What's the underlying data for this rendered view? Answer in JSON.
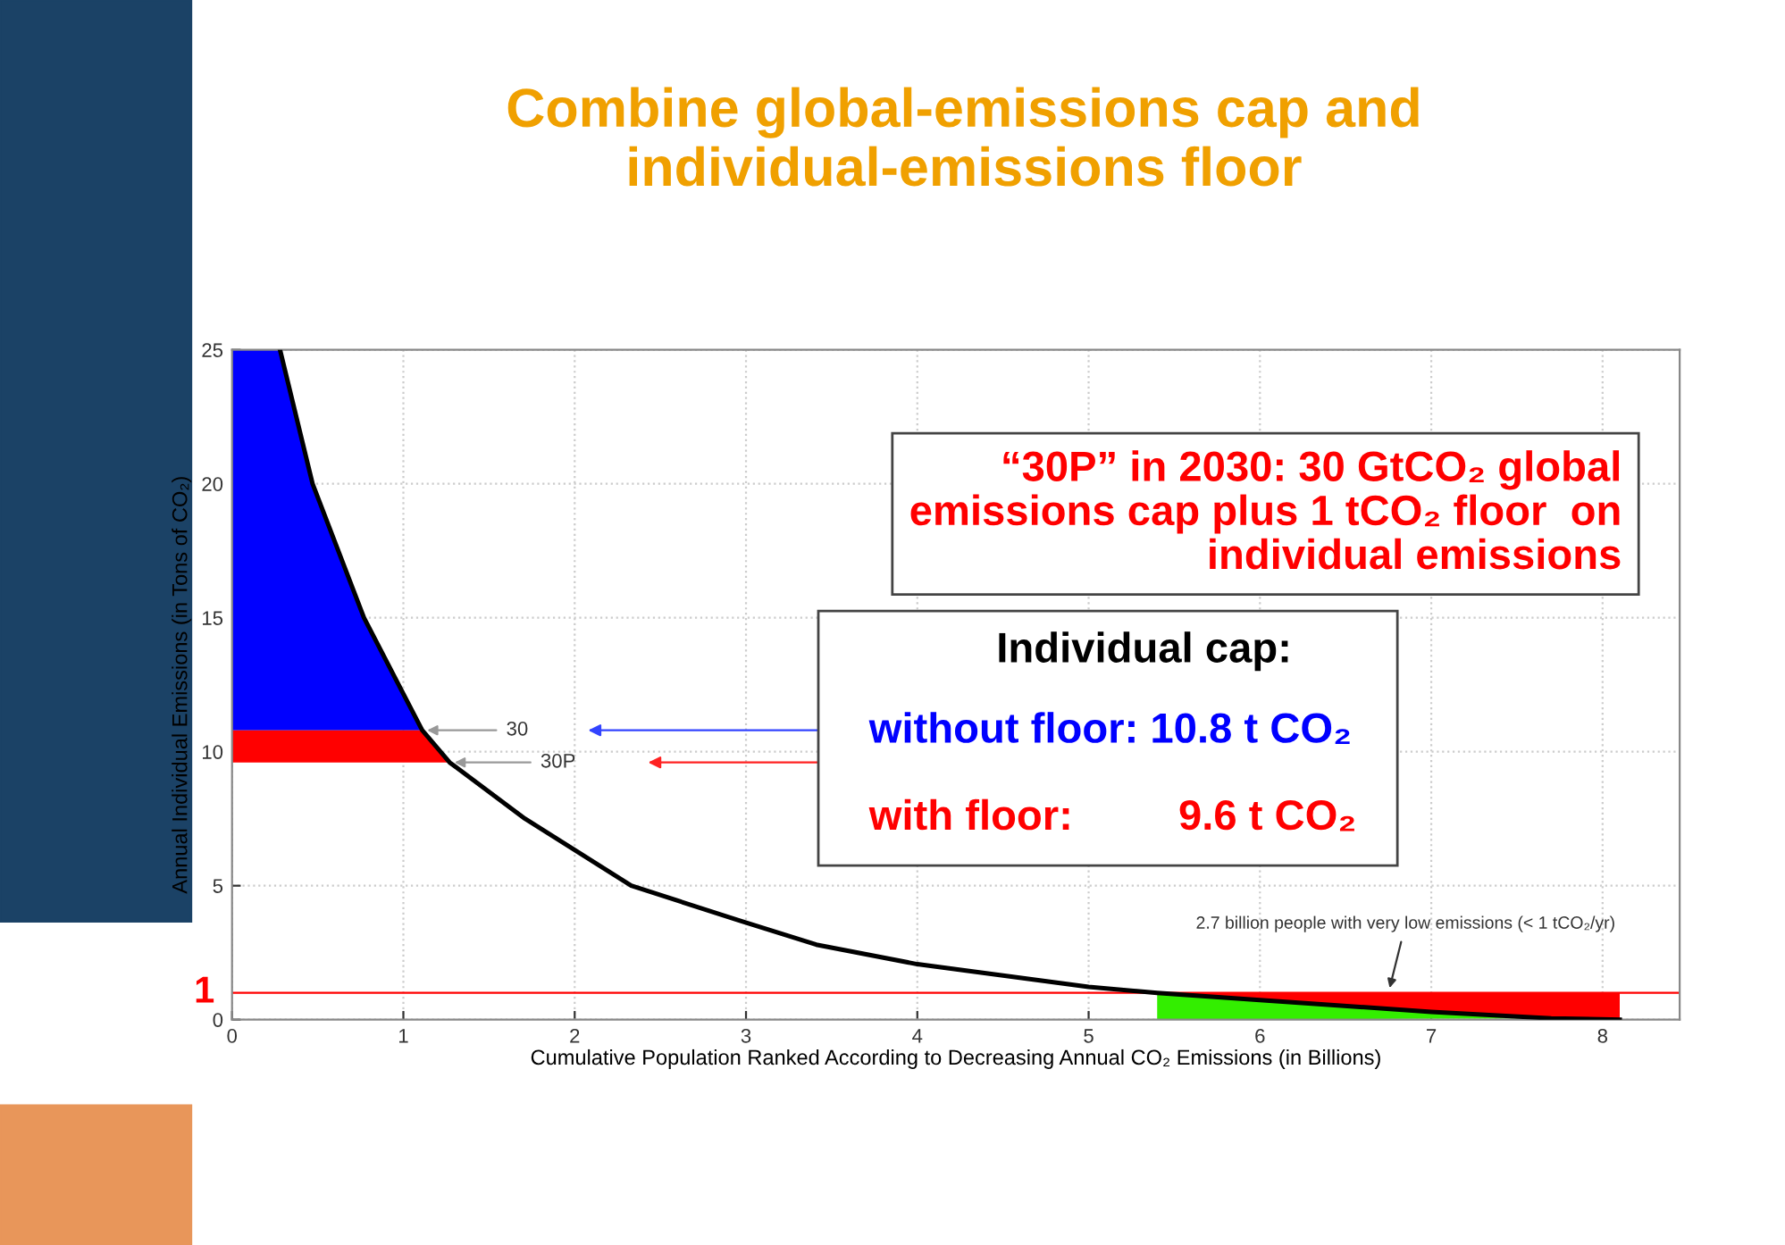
{
  "chart_data": {
    "type": "line",
    "title": "Combine global-emissions cap and\nindividual-emissions floor",
    "xlabel": "Cumulative Population Ranked According to Decreasing Annual CO₂ Emissions (in Billions)",
    "ylabel": "Annual Individual Emissions (in Tons of CO₂)",
    "xlim": [
      0,
      8.45
    ],
    "xticks": [
      0,
      1,
      2,
      3,
      4,
      5,
      6,
      7,
      8
    ],
    "ylim": [
      0,
      25
    ],
    "yticks": [
      0,
      5,
      10,
      15,
      20,
      25
    ],
    "grid": true,
    "series": [
      {
        "type": "area",
        "color": "#0000ff",
        "x": [
          0,
          0.28,
          0.47,
          0.77,
          1.11,
          0
        ],
        "values": [
          25,
          25,
          20,
          15,
          10.8,
          10.8
        ]
      },
      {
        "type": "area",
        "color": "#ff0000",
        "x": [
          0,
          1.11,
          1.27,
          0
        ],
        "values": [
          10.8,
          10.8,
          9.6,
          9.6
        ]
      },
      {
        "type": "area",
        "color": "#33ee00",
        "x": [
          5.4,
          6,
          7,
          7.7,
          5.4
        ],
        "values": [
          1.0,
          0.73,
          0.29,
          0.05,
          0
        ]
      },
      {
        "type": "area",
        "color": "#ff0000",
        "x": [
          5.4,
          8.1,
          8.1,
          7.7,
          7,
          6
        ],
        "values": [
          1,
          1,
          0,
          0.05,
          0.29,
          0.73
        ]
      },
      {
        "color": "#000000",
        "x": [
          0.28,
          0.47,
          0.77,
          1.11,
          1.27,
          1.71,
          2.33,
          2.96,
          3.41,
          4,
          5,
          5.4,
          6,
          7,
          7.7,
          8.1
        ],
        "values": [
          25,
          20,
          15,
          10.8,
          9.6,
          7.5,
          5,
          3.7,
          2.8,
          2.07,
          1.22,
          1.0,
          0.73,
          0.29,
          0.05,
          0
        ]
      }
    ],
    "ref_lines": [
      {
        "axis": "y",
        "value": 1,
        "label": "1",
        "color": "#ff0000"
      }
    ],
    "annotations": [
      {
        "text": "30",
        "x": 1.11,
        "y": 10.8
      },
      {
        "text": "30P",
        "x": 1.27,
        "y": 9.6
      },
      {
        "text": "2.7 billion people with very low emissions (< 1 tCO₂/yr)",
        "x": 6.75,
        "y": 1
      },
      "“30P” in 2030: 30 GtCO₂ global\nemissions cap plus 1 tCO₂ floor  on\nindividual emissions",
      "Individual cap:",
      "without floor: 10.8 t CO₂",
      "with floor:         9.6 t CO₂"
    ]
  }
}
